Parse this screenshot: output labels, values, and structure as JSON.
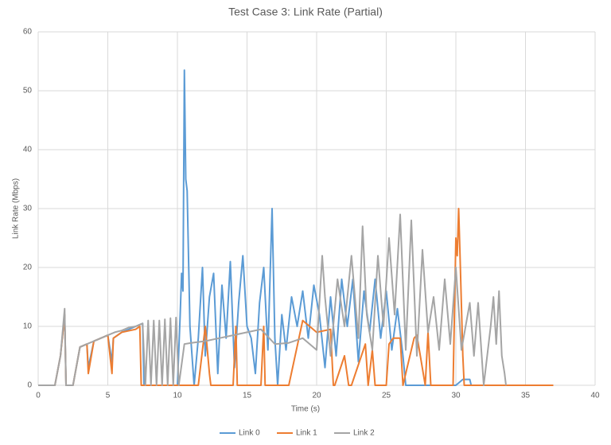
{
  "chart_data": {
    "type": "line",
    "title": "Test Case 3: Link Rate (Partial)",
    "x_label": "Time (s)",
    "y_label": "Link Rate (Mbps)",
    "xlim": [
      0,
      40
    ],
    "xticks": [
      0,
      5,
      10,
      15,
      20,
      25,
      30,
      35,
      40
    ],
    "ylim": [
      0,
      60
    ],
    "yticks": [
      0,
      10,
      20,
      30,
      40,
      50,
      60
    ],
    "grid": true,
    "legend": "bottom",
    "series": [
      {
        "name": "Link 0",
        "color": "#5b9bd5",
        "x": [
          0,
          1.2,
          1.6,
          1.9,
          2.0,
          2.5,
          3,
          3.5,
          3.6,
          4,
          5,
          5.3,
          5.4,
          6,
          7,
          7.5,
          7.6,
          8,
          9,
          10,
          10.2,
          10.3,
          10.4,
          10.5,
          10.6,
          10.7,
          10.9,
          11.2,
          11.5,
          11.8,
          12.0,
          12.3,
          12.6,
          12.9,
          13.2,
          13.5,
          13.8,
          14.1,
          14.4,
          14.7,
          15,
          15.3,
          15.6,
          15.9,
          16.2,
          16.5,
          16.8,
          17.0,
          17.2,
          17.5,
          17.8,
          18.2,
          18.6,
          19.0,
          19.4,
          19.8,
          20.2,
          20.6,
          21,
          21.4,
          21.8,
          22.2,
          22.6,
          23,
          23.4,
          23.8,
          24.2,
          24.6,
          25,
          25.4,
          25.8,
          26.2,
          26.4,
          29.5,
          30,
          30.5,
          31,
          31.1
        ],
        "values": [
          0,
          0,
          5,
          12,
          0,
          0,
          6.5,
          7,
          3,
          7.5,
          8.5,
          4,
          8,
          9,
          10,
          10.5,
          0,
          0,
          0,
          0,
          12,
          19,
          16,
          53.5,
          35,
          33,
          10,
          0,
          8,
          20,
          5,
          15,
          19,
          2,
          17,
          8,
          21,
          3,
          14,
          22,
          10,
          8,
          2,
          14,
          20,
          6,
          30,
          8,
          0,
          12,
          6,
          15,
          10,
          16,
          8,
          17,
          12,
          3,
          15,
          5,
          18,
          10,
          18,
          4,
          16,
          9,
          18,
          8,
          16,
          6,
          13,
          5,
          0,
          0,
          0,
          1,
          1,
          0
        ]
      },
      {
        "name": "Link 1",
        "color": "#ed7d31",
        "x": [
          0,
          1.2,
          1.6,
          1.9,
          2.0,
          2.5,
          3,
          3.5,
          3.6,
          4,
          5,
          5.3,
          5.4,
          6,
          7,
          7.3,
          7.4,
          11.5,
          12,
          12.3,
          12.4,
          14,
          14.2,
          14.3,
          16,
          16.2,
          16.3,
          18,
          19,
          20,
          21,
          21.2,
          21.3,
          22,
          22.3,
          22.5,
          23.5,
          23.7,
          24,
          24.2,
          25,
          25.2,
          25.5,
          26,
          26.2,
          27,
          27.2,
          27.8,
          28,
          28.2,
          29.8,
          30,
          30.1,
          30.2,
          30.3,
          30.5,
          30.6,
          31,
          37
        ],
        "values": [
          0,
          0,
          5,
          12,
          0,
          0,
          6.5,
          7,
          2,
          7.5,
          8.5,
          2,
          8,
          9,
          9.5,
          10,
          0,
          0,
          10,
          2,
          0,
          0,
          10,
          0,
          0,
          10,
          0,
          0,
          11,
          9,
          9.5,
          0,
          0,
          5,
          0,
          0,
          7,
          0,
          6,
          0,
          0,
          7,
          8,
          8,
          0,
          8,
          8.5,
          0,
          9,
          0,
          0,
          25,
          22,
          30,
          22,
          5,
          0,
          0,
          0
        ]
      },
      {
        "name": "Link 2",
        "color": "#a5a5a5",
        "x": [
          0,
          1.2,
          1.6,
          1.9,
          2.0,
          2.5,
          3,
          3.5,
          4,
          4.5,
          5,
          5.5,
          6,
          6.5,
          7,
          7.5,
          7.7,
          7.9,
          8.1,
          8.3,
          8.5,
          8.7,
          8.9,
          9.1,
          9.3,
          9.5,
          9.7,
          9.9,
          10.1,
          10.5,
          11,
          12,
          13,
          14,
          15,
          16,
          17,
          18,
          19,
          20,
          20.4,
          20.6,
          21,
          21.5,
          22,
          22.5,
          23,
          23.3,
          23.6,
          24,
          24.4,
          24.8,
          25.2,
          25.6,
          26,
          26.4,
          26.8,
          27.2,
          27.6,
          28,
          28.4,
          28.8,
          29.2,
          29.6,
          30,
          30.4,
          31,
          31.3,
          31.6,
          32,
          32.5,
          32.7,
          32.9,
          33.1,
          33.3,
          33.5,
          33.6
        ],
        "values": [
          0,
          0,
          5,
          13,
          0,
          0,
          6.5,
          7,
          7.5,
          8,
          8.5,
          9,
          9.3,
          9.8,
          10,
          10.5,
          0,
          11,
          0,
          11,
          0,
          11,
          0,
          11.2,
          0,
          11.4,
          0,
          11.5,
          0,
          7,
          7.2,
          7.5,
          8,
          8.5,
          9,
          9.5,
          7,
          7.2,
          8,
          6,
          22,
          15,
          5,
          18,
          10,
          22,
          8,
          27,
          12,
          6,
          22,
          10,
          25,
          12,
          29,
          6,
          28,
          5,
          23,
          9,
          15,
          6,
          18,
          7,
          20,
          6,
          14,
          5,
          14,
          0,
          10,
          15,
          7,
          16,
          5,
          2,
          0
        ]
      }
    ]
  }
}
